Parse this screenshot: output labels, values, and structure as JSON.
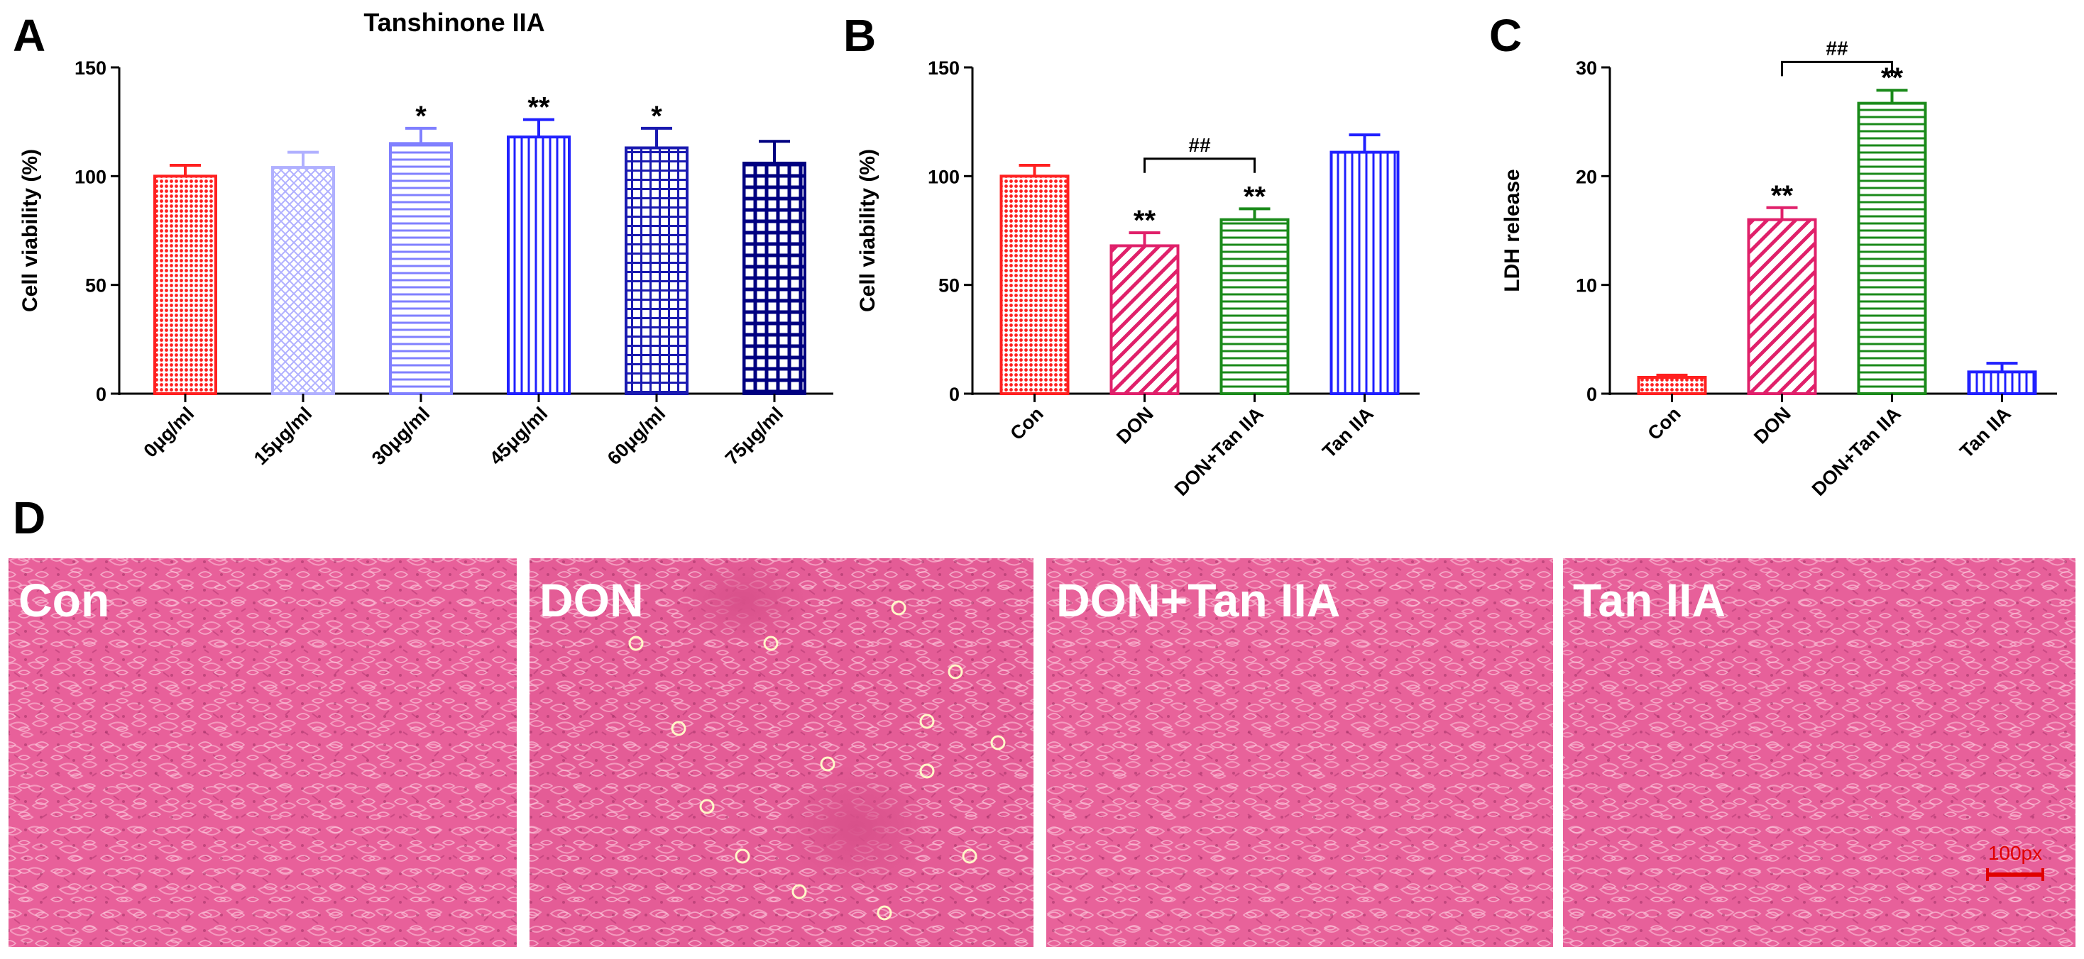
{
  "panels": {
    "A": "A",
    "B": "B",
    "C": "C",
    "D": "D"
  },
  "chart_data": [
    {
      "panel": "A",
      "type": "bar",
      "title": "Tanshinone IIA",
      "xlabel": "",
      "ylabel": "Cell viability (%)",
      "ylim": [
        0,
        150
      ],
      "yticks": [
        0,
        50,
        100,
        150
      ],
      "categories": [
        "0μg/ml",
        "15μg/ml",
        "30μg/ml",
        "45μg/ml",
        "60μg/ml",
        "75μg/ml"
      ],
      "values": [
        100,
        104,
        115,
        118,
        113,
        106
      ],
      "errors": [
        5,
        7,
        7,
        8,
        9,
        10
      ],
      "colors": [
        "#ff2020",
        "#b0b0ff",
        "#8080ff",
        "#2020ff",
        "#1a1ab0",
        "#000080"
      ],
      "patterns": [
        "dots",
        "crosshatch-light",
        "hlines",
        "vlines",
        "grid",
        "grid-dense"
      ],
      "significance": [
        "",
        "",
        "*",
        "**",
        "*",
        ""
      ],
      "comparisons": []
    },
    {
      "panel": "B",
      "type": "bar",
      "title": "",
      "xlabel": "",
      "ylabel": "Cell viability (%)",
      "ylim": [
        0,
        150
      ],
      "yticks": [
        0,
        50,
        100,
        150
      ],
      "categories": [
        "Con",
        "DON",
        "DON+Tan IIA",
        "Tan IIA"
      ],
      "values": [
        100,
        68,
        80,
        111
      ],
      "errors": [
        5,
        6,
        5,
        8
      ],
      "colors": [
        "#ff2020",
        "#e0206a",
        "#1a8a1a",
        "#2020ff"
      ],
      "patterns": [
        "dots",
        "diag",
        "hlines",
        "vlines"
      ],
      "significance": [
        "",
        "**",
        "**",
        ""
      ],
      "comparisons": [
        {
          "from": 1,
          "to": 2,
          "label": "##",
          "y": 108
        }
      ]
    },
    {
      "panel": "C",
      "type": "bar",
      "title": "",
      "xlabel": "",
      "ylabel": "LDH release",
      "ylim": [
        0,
        30
      ],
      "yticks": [
        0,
        10,
        20,
        30
      ],
      "categories": [
        "Con",
        "DON",
        "DON+Tan IIA",
        "Tan IIA"
      ],
      "values": [
        1.5,
        16,
        26.7,
        2
      ],
      "errors": [
        0.2,
        1.1,
        1.2,
        0.8
      ],
      "colors": [
        "#ff2020",
        "#e0206a",
        "#1a8a1a",
        "#2020ff"
      ],
      "patterns": [
        "dots",
        "diag",
        "hlines",
        "vlines"
      ],
      "significance": [
        "",
        "**",
        "**",
        ""
      ],
      "comparisons": [
        {
          "from": 1,
          "to": 2,
          "label": "##",
          "y": 30.5
        }
      ]
    }
  ],
  "photos": [
    {
      "label": "Con",
      "tone": "#e8609a",
      "defect": "none"
    },
    {
      "label": "DON",
      "tone": "#e45c96",
      "defect": "sparse"
    },
    {
      "label": "DON+Tan IIA",
      "tone": "#e8629a",
      "defect": "none"
    },
    {
      "label": "Tan IIA",
      "tone": "#e7609a",
      "defect": "none"
    }
  ],
  "scale_bar": {
    "label": "100px"
  }
}
